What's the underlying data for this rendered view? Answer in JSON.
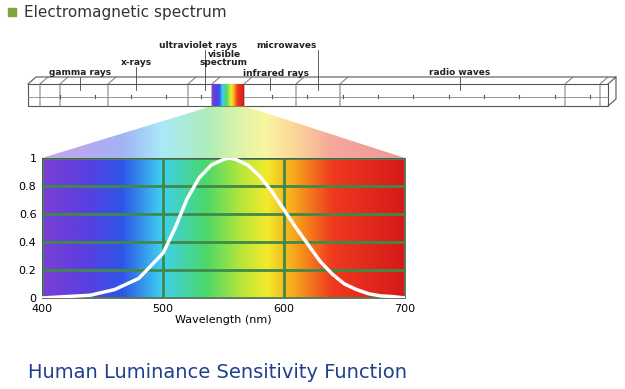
{
  "header": "Electromagnetic spectrum",
  "spectrum": {
    "labels": [
      "gamma rays",
      "x-rays",
      "ultraviolet rays",
      "visible\nspectrum",
      "infrared rays",
      "microwaves",
      "radio waves"
    ]
  },
  "chart_data": {
    "type": "line",
    "title": "Human Luminance Sensitivity Function",
    "x_label": "Wavelength (nm)",
    "x": [
      400,
      420,
      440,
      460,
      480,
      500,
      510,
      520,
      530,
      540,
      550,
      555,
      560,
      570,
      580,
      590,
      600,
      610,
      620,
      630,
      640,
      650,
      660,
      670,
      680,
      690,
      700
    ],
    "values": [
      0.0,
      0.01,
      0.02,
      0.06,
      0.14,
      0.32,
      0.5,
      0.71,
      0.86,
      0.95,
      0.99,
      1.0,
      0.99,
      0.95,
      0.87,
      0.76,
      0.63,
      0.5,
      0.38,
      0.26,
      0.17,
      0.1,
      0.06,
      0.03,
      0.015,
      0.01,
      0.0
    ],
    "color": "#ffffff",
    "xlim": [
      400,
      700
    ],
    "xticks": [
      400,
      500,
      600,
      700
    ],
    "ylim": [
      0,
      1
    ],
    "yticks": [
      0,
      0.2,
      0.4,
      0.6,
      0.8,
      1
    ],
    "grid": true
  }
}
